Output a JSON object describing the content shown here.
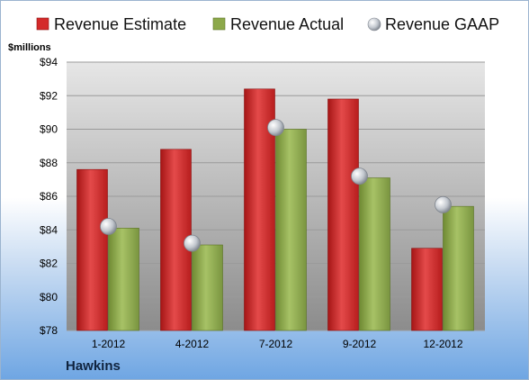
{
  "company": "Hawkins",
  "unit_label": "$millions",
  "colors": {
    "estimate": "#d42a2a",
    "actual": "#8ca84a",
    "gaap": "#b9bec6",
    "plot_bg_top": "#e4e4e4",
    "plot_bg_bottom": "#8e8e8e",
    "grid": "#9a9a9a"
  },
  "chart_data": {
    "type": "bar",
    "categories": [
      "1-2012",
      "4-2012",
      "7-2012",
      "9-2012",
      "12-2012"
    ],
    "series": [
      {
        "name": "Revenue Estimate",
        "kind": "bar",
        "values": [
          87.6,
          88.8,
          92.4,
          91.8,
          82.9
        ]
      },
      {
        "name": "Revenue Actual",
        "kind": "bar",
        "values": [
          84.1,
          83.1,
          90.0,
          87.1,
          85.4
        ]
      },
      {
        "name": "Revenue GAAP",
        "kind": "marker",
        "values": [
          84.2,
          83.2,
          90.1,
          87.2,
          85.5
        ]
      }
    ],
    "ylim": [
      78,
      94
    ],
    "yticks": [
      78,
      80,
      82,
      84,
      86,
      88,
      90,
      92,
      94
    ],
    "ytick_labels": [
      "$78",
      "$80",
      "$82",
      "$84",
      "$86",
      "$88",
      "$90",
      "$92",
      "$94"
    ],
    "title": "",
    "xlabel": "",
    "ylabel": "$millions",
    "grid": true,
    "legend_position": "top"
  }
}
